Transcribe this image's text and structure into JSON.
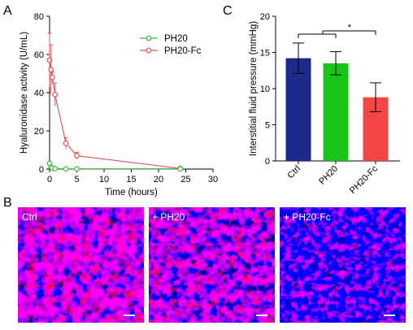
{
  "panel_labels": {
    "a": "A",
    "b": "B",
    "c": "C"
  },
  "colors": {
    "ph20": "#3cb83c",
    "ph20fc": "#e05555",
    "bar_ctrl": "#1c2a8c",
    "bar_ph20": "#18c418",
    "bar_ph20fc": "#f54545"
  },
  "chart_data": [
    {
      "type": "line",
      "xlabel": "Time (hours)",
      "ylabel": "Hyaluronidase activity (U/mL)",
      "xlim": [
        0,
        30
      ],
      "ylim": [
        0,
        80
      ],
      "xticks": [
        "0",
        "5",
        "10",
        "15",
        "20",
        "25",
        "30"
      ],
      "yticks": [
        "0",
        "20",
        "40",
        "60",
        "80"
      ],
      "legend_placement": "top-right",
      "series": [
        {
          "name": "PH20",
          "x": [
            0,
            0.25,
            0.5,
            1,
            3,
            5,
            24
          ],
          "y": [
            3,
            1,
            0.5,
            0.2,
            0.1,
            0.1,
            0.1
          ],
          "err": [
            0.5,
            0,
            0,
            0,
            0,
            0,
            0
          ]
        },
        {
          "name": "PH20-Fc",
          "x": [
            0,
            0.25,
            0.5,
            1,
            3,
            5,
            24
          ],
          "y": [
            57,
            52,
            48,
            39,
            13.5,
            7,
            0.3
          ],
          "err": [
            14,
            13,
            3,
            6,
            3,
            1.8,
            0.3
          ]
        }
      ]
    },
    {
      "type": "bar",
      "ylabel": "Interstitial fluid pressure (mmHg)",
      "ylim": [
        0,
        20
      ],
      "yticks": [
        "0",
        "5",
        "10",
        "15",
        "20"
      ],
      "categories": [
        "Ctrl",
        "PH20",
        "PH20-Fc"
      ],
      "values": [
        14.2,
        13.5,
        8.8
      ],
      "errors": [
        2.1,
        1.6,
        2.0
      ],
      "significance": "*"
    }
  ],
  "images": [
    {
      "label": "Ctrl"
    },
    {
      "label": "+ PH20"
    },
    {
      "label": "+ PH20-Fc"
    }
  ]
}
